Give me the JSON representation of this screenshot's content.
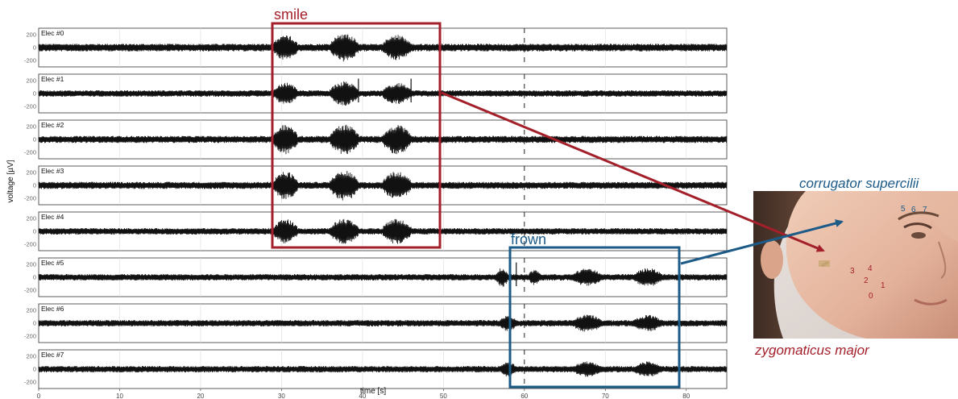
{
  "chart_data": {
    "type": "line",
    "xlabel": "time [s]",
    "ylabel": "voltage [µV]",
    "xlim": [
      0,
      85
    ],
    "ylim": [
      -300,
      300
    ],
    "xticks": [
      "0",
      "10",
      "20",
      "30",
      "40",
      "50",
      "60",
      "70",
      "80"
    ],
    "yticks": [
      "200",
      "0",
      "-200"
    ],
    "grid": true,
    "dashed_time": 60,
    "series": [
      {
        "name": "Elec #0",
        "baseline": 60,
        "bursts": [
          [
            29,
            32,
            200
          ],
          [
            36,
            39.5,
            220
          ],
          [
            42.5,
            46,
            200
          ]
        ]
      },
      {
        "name": "Elec #1",
        "baseline": 50,
        "bursts": [
          [
            29,
            32,
            170
          ],
          [
            36,
            39.5,
            190
          ],
          [
            42.5,
            46,
            170
          ]
        ],
        "spikes": [
          [
            39.5,
            230
          ],
          [
            46,
            230
          ]
        ]
      },
      {
        "name": "Elec #2",
        "baseline": 55,
        "bursts": [
          [
            29,
            32,
            230
          ],
          [
            36,
            39.5,
            240
          ],
          [
            42.5,
            46,
            230
          ]
        ]
      },
      {
        "name": "Elec #3",
        "baseline": 55,
        "bursts": [
          [
            29,
            32,
            220
          ],
          [
            36,
            39.5,
            240
          ],
          [
            42.5,
            46,
            220
          ]
        ]
      },
      {
        "name": "Elec #4",
        "baseline": 50,
        "bursts": [
          [
            29,
            32,
            190
          ],
          [
            36,
            39.5,
            200
          ],
          [
            42.5,
            46,
            200
          ]
        ]
      },
      {
        "name": "Elec #5",
        "baseline": 50,
        "bursts": [
          [
            56.5,
            58,
            150
          ],
          [
            60.5,
            62,
            120
          ],
          [
            66,
            69.5,
            140
          ],
          [
            73.5,
            77,
            150
          ]
        ],
        "spikes": [
          [
            59,
            230
          ]
        ]
      },
      {
        "name": "Elec #6",
        "baseline": 50,
        "bursts": [
          [
            57,
            59,
            130
          ],
          [
            66,
            69.5,
            140
          ],
          [
            73.5,
            77,
            130
          ]
        ]
      },
      {
        "name": "Elec #7",
        "baseline": 50,
        "bursts": [
          [
            57,
            59,
            120
          ],
          [
            66,
            69.5,
            120
          ],
          [
            73.5,
            77,
            120
          ]
        ]
      }
    ],
    "annotations": [
      {
        "label": "smile",
        "time_range": [
          28.8,
          49.5
        ],
        "electrodes": [
          0,
          4
        ],
        "color": "#a31f2a"
      },
      {
        "label": "frown",
        "time_range": [
          58,
          79.5
        ],
        "electrodes": [
          5,
          7
        ],
        "color": "#1c5a87"
      }
    ]
  },
  "photo": {
    "muscle_upper": "corrugator supercilii",
    "muscle_lower": "zygomaticus major",
    "upper_electrode_numbers": [
      "5",
      "6",
      "7"
    ],
    "lower_electrode_numbers": [
      "3",
      "4",
      "2",
      "1",
      "0"
    ],
    "colors": {
      "upper": "#1c5a87",
      "lower": "#a31f2a"
    }
  }
}
